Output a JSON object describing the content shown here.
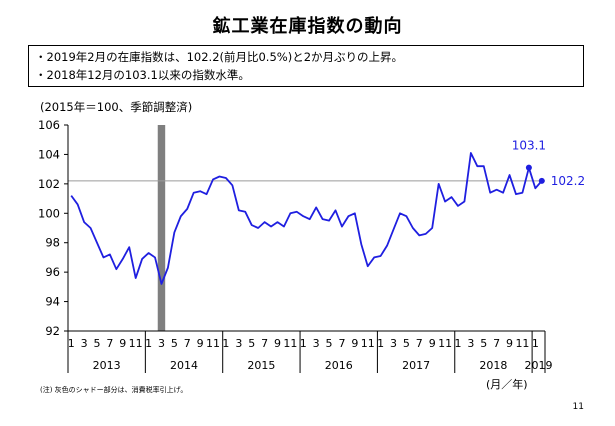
{
  "title": "鉱工業在庫指数の動向",
  "bullets": [
    "・2019年2月の在庫指数は、102.2(前月比0.5%)と2か月ぶりの上昇。",
    "・2018年12月の103.1以来の指数水準。"
  ],
  "unit_note": "(2015年＝100、季節調整済)",
  "x_unit": "(月／年)",
  "footnote": "(注) 灰色のシャドー部分は、消費税率引上げ。",
  "page_number": "11",
  "colors": {
    "line": "#1f1fe0",
    "shade": "#7f7f7f",
    "refline": "#9a9a9a",
    "axis": "#000000"
  },
  "chart_data": {
    "type": "line",
    "ylim": [
      92,
      106
    ],
    "yticks": [
      92,
      94,
      96,
      98,
      100,
      102,
      104,
      106
    ],
    "month_labels": [
      "1",
      "3",
      "5",
      "7",
      "9",
      "11"
    ],
    "years": [
      "2013",
      "2014",
      "2015",
      "2016",
      "2017",
      "2018",
      "2019"
    ],
    "x_start": "2013-01",
    "x_end": "2019-02",
    "shade_period": [
      "2014-03",
      "2014-03"
    ],
    "reference_line": 102.2,
    "series": [
      {
        "values": [
          101.2,
          100.6,
          99.4,
          99.0,
          98.0,
          97.0,
          97.2,
          96.2,
          96.9,
          97.7,
          95.6,
          96.9,
          97.3,
          97.0,
          95.2,
          96.3,
          98.7,
          99.8,
          100.3,
          101.4,
          101.5,
          101.3,
          102.3,
          102.5,
          102.4,
          101.9,
          100.2,
          100.1,
          99.2,
          99.0,
          99.4,
          99.1,
          99.4,
          99.1,
          100.0,
          100.1,
          99.8,
          99.6,
          100.4,
          99.6,
          99.5,
          100.2,
          99.1,
          99.8,
          100.0,
          97.9,
          96.4,
          97.0,
          97.1,
          97.8,
          98.9,
          100.0,
          99.8,
          99.0,
          98.5,
          98.6,
          99.0,
          102.0,
          100.8,
          101.1,
          100.5,
          100.8,
          104.1,
          103.2,
          103.2,
          101.4,
          101.6,
          101.4,
          102.6,
          101.3,
          101.4,
          103.1,
          101.7,
          102.2
        ]
      }
    ],
    "annotations": [
      {
        "month": "2018-12",
        "label": "103.1"
      },
      {
        "month": "2019-02",
        "label": "102.2"
      }
    ]
  }
}
